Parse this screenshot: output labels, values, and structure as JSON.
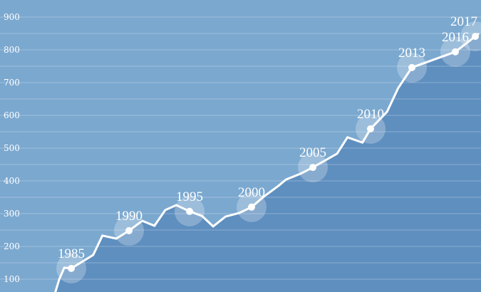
{
  "chart_data": {
    "type": "area",
    "title": "",
    "xlabel": "",
    "ylabel": "",
    "ylim": [
      50,
      925
    ],
    "yticks": [
      100,
      200,
      300,
      400,
      500,
      600,
      700,
      800,
      900
    ],
    "grid": true,
    "grid_step": 50,
    "colors": {
      "background": "#7ba8cf",
      "fill": "#5f8fbf",
      "line": "#ffffff",
      "halo": "#ffffff"
    },
    "points": [
      {
        "x": 1981.8,
        "y": 60
      },
      {
        "x": 1982.6,
        "y": 100
      },
      {
        "x": 1983.6,
        "y": 135
      },
      {
        "x": 1985,
        "y": 133,
        "label": "1985"
      },
      {
        "x": 1986.9,
        "y": 174
      },
      {
        "x": 1987.7,
        "y": 233
      },
      {
        "x": 1988.9,
        "y": 224
      },
      {
        "x": 1990,
        "y": 248,
        "label": "1990"
      },
      {
        "x": 1991.1,
        "y": 278
      },
      {
        "x": 1992.1,
        "y": 263
      },
      {
        "x": 1993.0,
        "y": 311
      },
      {
        "x": 1993.9,
        "y": 326
      },
      {
        "x": 1995,
        "y": 307,
        "label": "1995"
      },
      {
        "x": 1996.0,
        "y": 293
      },
      {
        "x": 1996.9,
        "y": 261
      },
      {
        "x": 1997.9,
        "y": 291
      },
      {
        "x": 1999.0,
        "y": 302
      },
      {
        "x": 2000,
        "y": 320,
        "label": "2000"
      },
      {
        "x": 2001.0,
        "y": 352
      },
      {
        "x": 2002.2,
        "y": 385
      },
      {
        "x": 2002.8,
        "y": 404
      },
      {
        "x": 2004.0,
        "y": 422
      },
      {
        "x": 2005,
        "y": 441,
        "label": "2005"
      },
      {
        "x": 2007.1,
        "y": 483
      },
      {
        "x": 2008.0,
        "y": 533
      },
      {
        "x": 2009.3,
        "y": 517
      },
      {
        "x": 2010,
        "y": 559,
        "label": "2010"
      },
      {
        "x": 2011.2,
        "y": 611
      },
      {
        "x": 2012.0,
        "y": 683
      },
      {
        "x": 2013,
        "y": 746,
        "label": "2013"
      },
      {
        "x": 2016,
        "y": 794,
        "label": "2016"
      },
      {
        "x": 2017,
        "y": 841,
        "label": "2017"
      },
      {
        "x": 2017.3,
        "y": 850
      }
    ]
  }
}
